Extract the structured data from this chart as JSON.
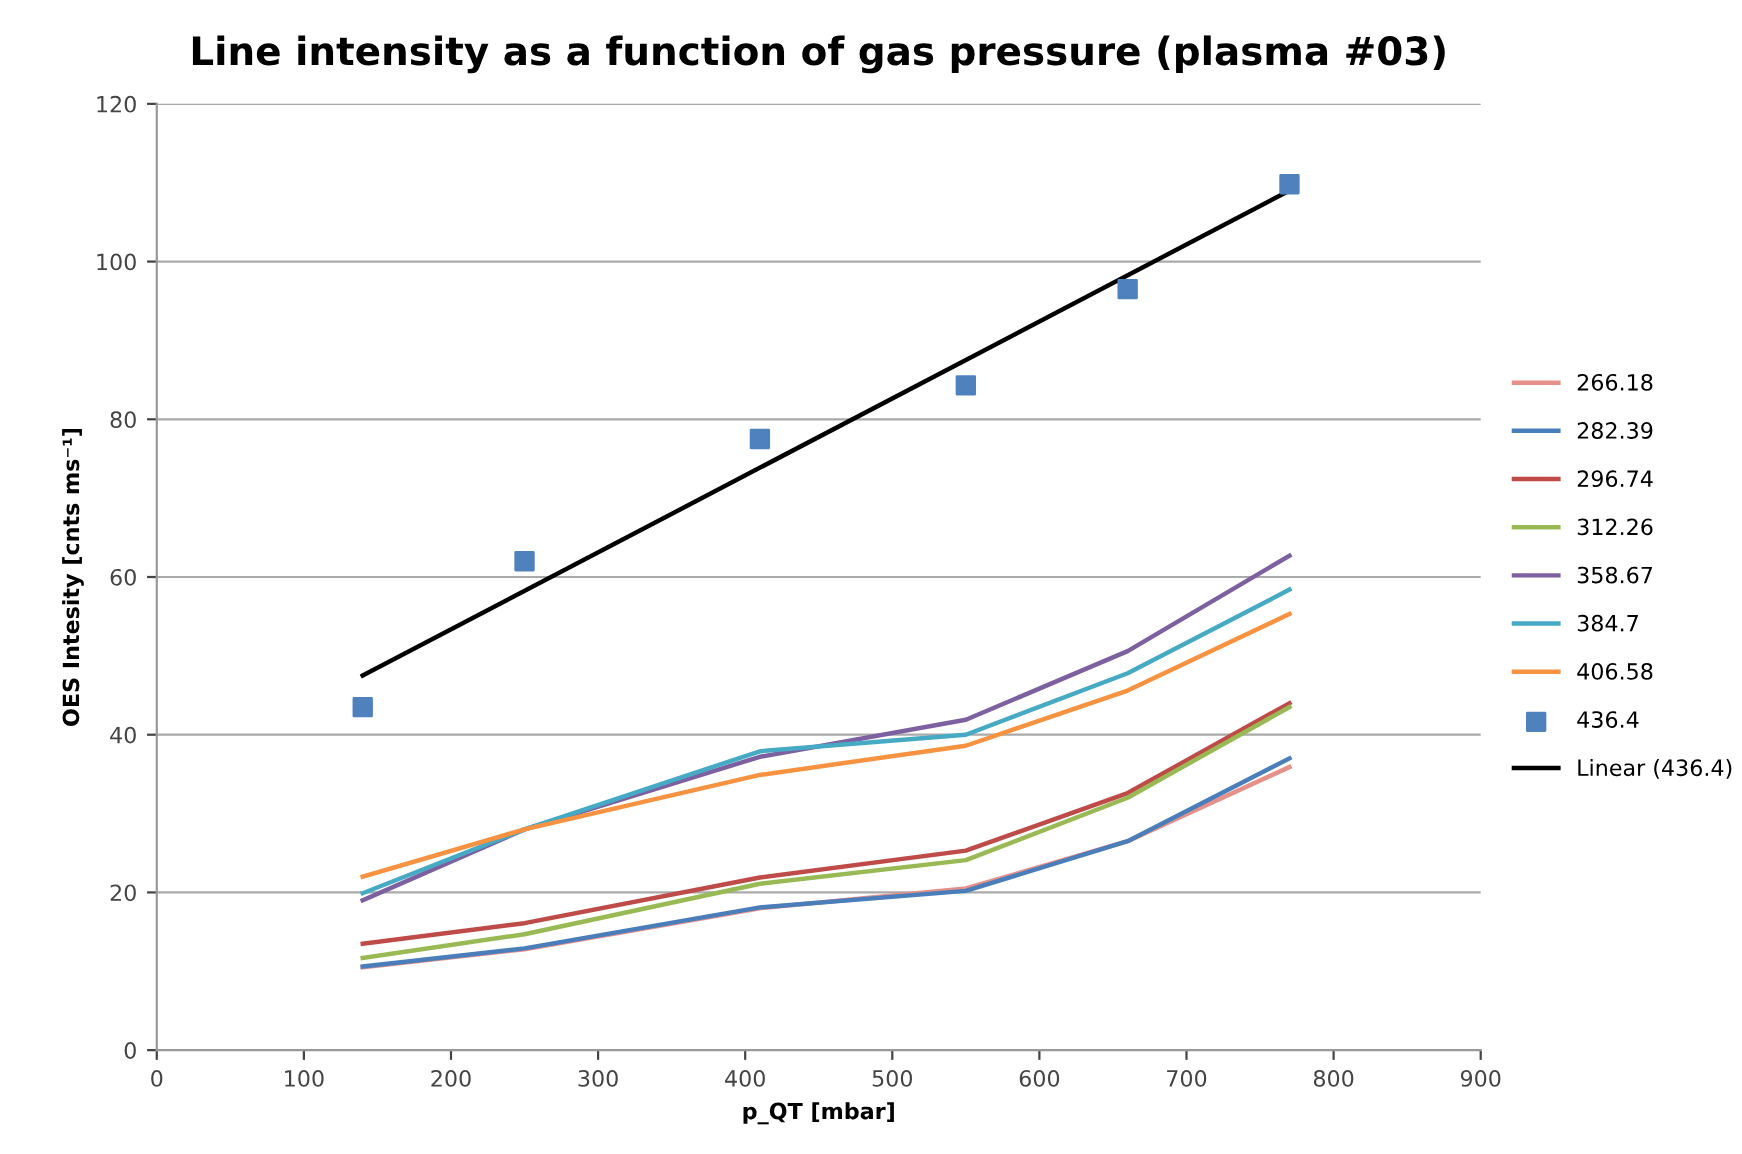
{
  "chart_data": {
    "type": "line",
    "title": "Line intensity as a function of gas pressure (plasma #03)",
    "xlabel": "p_QT [mbar]",
    "ylabel": "OES Intesity [cnts ms⁻¹]",
    "x": [
      140,
      250,
      410,
      550,
      660,
      770
    ],
    "series": [
      {
        "name": "266.18",
        "color": "#e6908a",
        "values": [
          10.5,
          12.8,
          18.0,
          20.5,
          26.5,
          35.9
        ]
      },
      {
        "name": "282.39",
        "color": "#4a7ebb",
        "values": [
          10.6,
          12.9,
          18.1,
          20.2,
          26.5,
          37.0
        ]
      },
      {
        "name": "296.74",
        "color": "#be4b48",
        "values": [
          13.5,
          16.1,
          21.9,
          25.3,
          32.6,
          44.0
        ]
      },
      {
        "name": "312.26",
        "color": "#98b954",
        "values": [
          11.7,
          14.7,
          21.1,
          24.1,
          32.0,
          43.5
        ]
      },
      {
        "name": "358.67",
        "color": "#7d60a0",
        "values": [
          19.0,
          28.0,
          37.2,
          41.9,
          50.6,
          62.7
        ]
      },
      {
        "name": "384.7",
        "color": "#46aac5",
        "values": [
          19.9,
          28.0,
          37.9,
          40.0,
          47.8,
          58.4
        ]
      },
      {
        "name": "406.58",
        "color": "#f69240",
        "values": [
          22.0,
          28.0,
          34.9,
          38.6,
          45.6,
          55.3
        ]
      },
      {
        "name": "436.4",
        "type": "scatter",
        "marker": "square",
        "color": "#4f81bd",
        "values": [
          43.5,
          62.0,
          77.5,
          84.3,
          96.5,
          109.8
        ]
      },
      {
        "name": "Linear (436.4)",
        "type": "line",
        "color": "#000000",
        "x": [
          140,
          770
        ],
        "values": [
          47.5,
          109.0
        ]
      }
    ],
    "xlim": [
      0,
      900
    ],
    "xticks": [
      0,
      100,
      200,
      300,
      400,
      500,
      600,
      700,
      800,
      900
    ],
    "ylim": [
      0,
      120
    ],
    "yticks": [
      0,
      20,
      40,
      60,
      80,
      100,
      120
    ],
    "grid": "y",
    "legend": "right",
    "marker": "none"
  }
}
